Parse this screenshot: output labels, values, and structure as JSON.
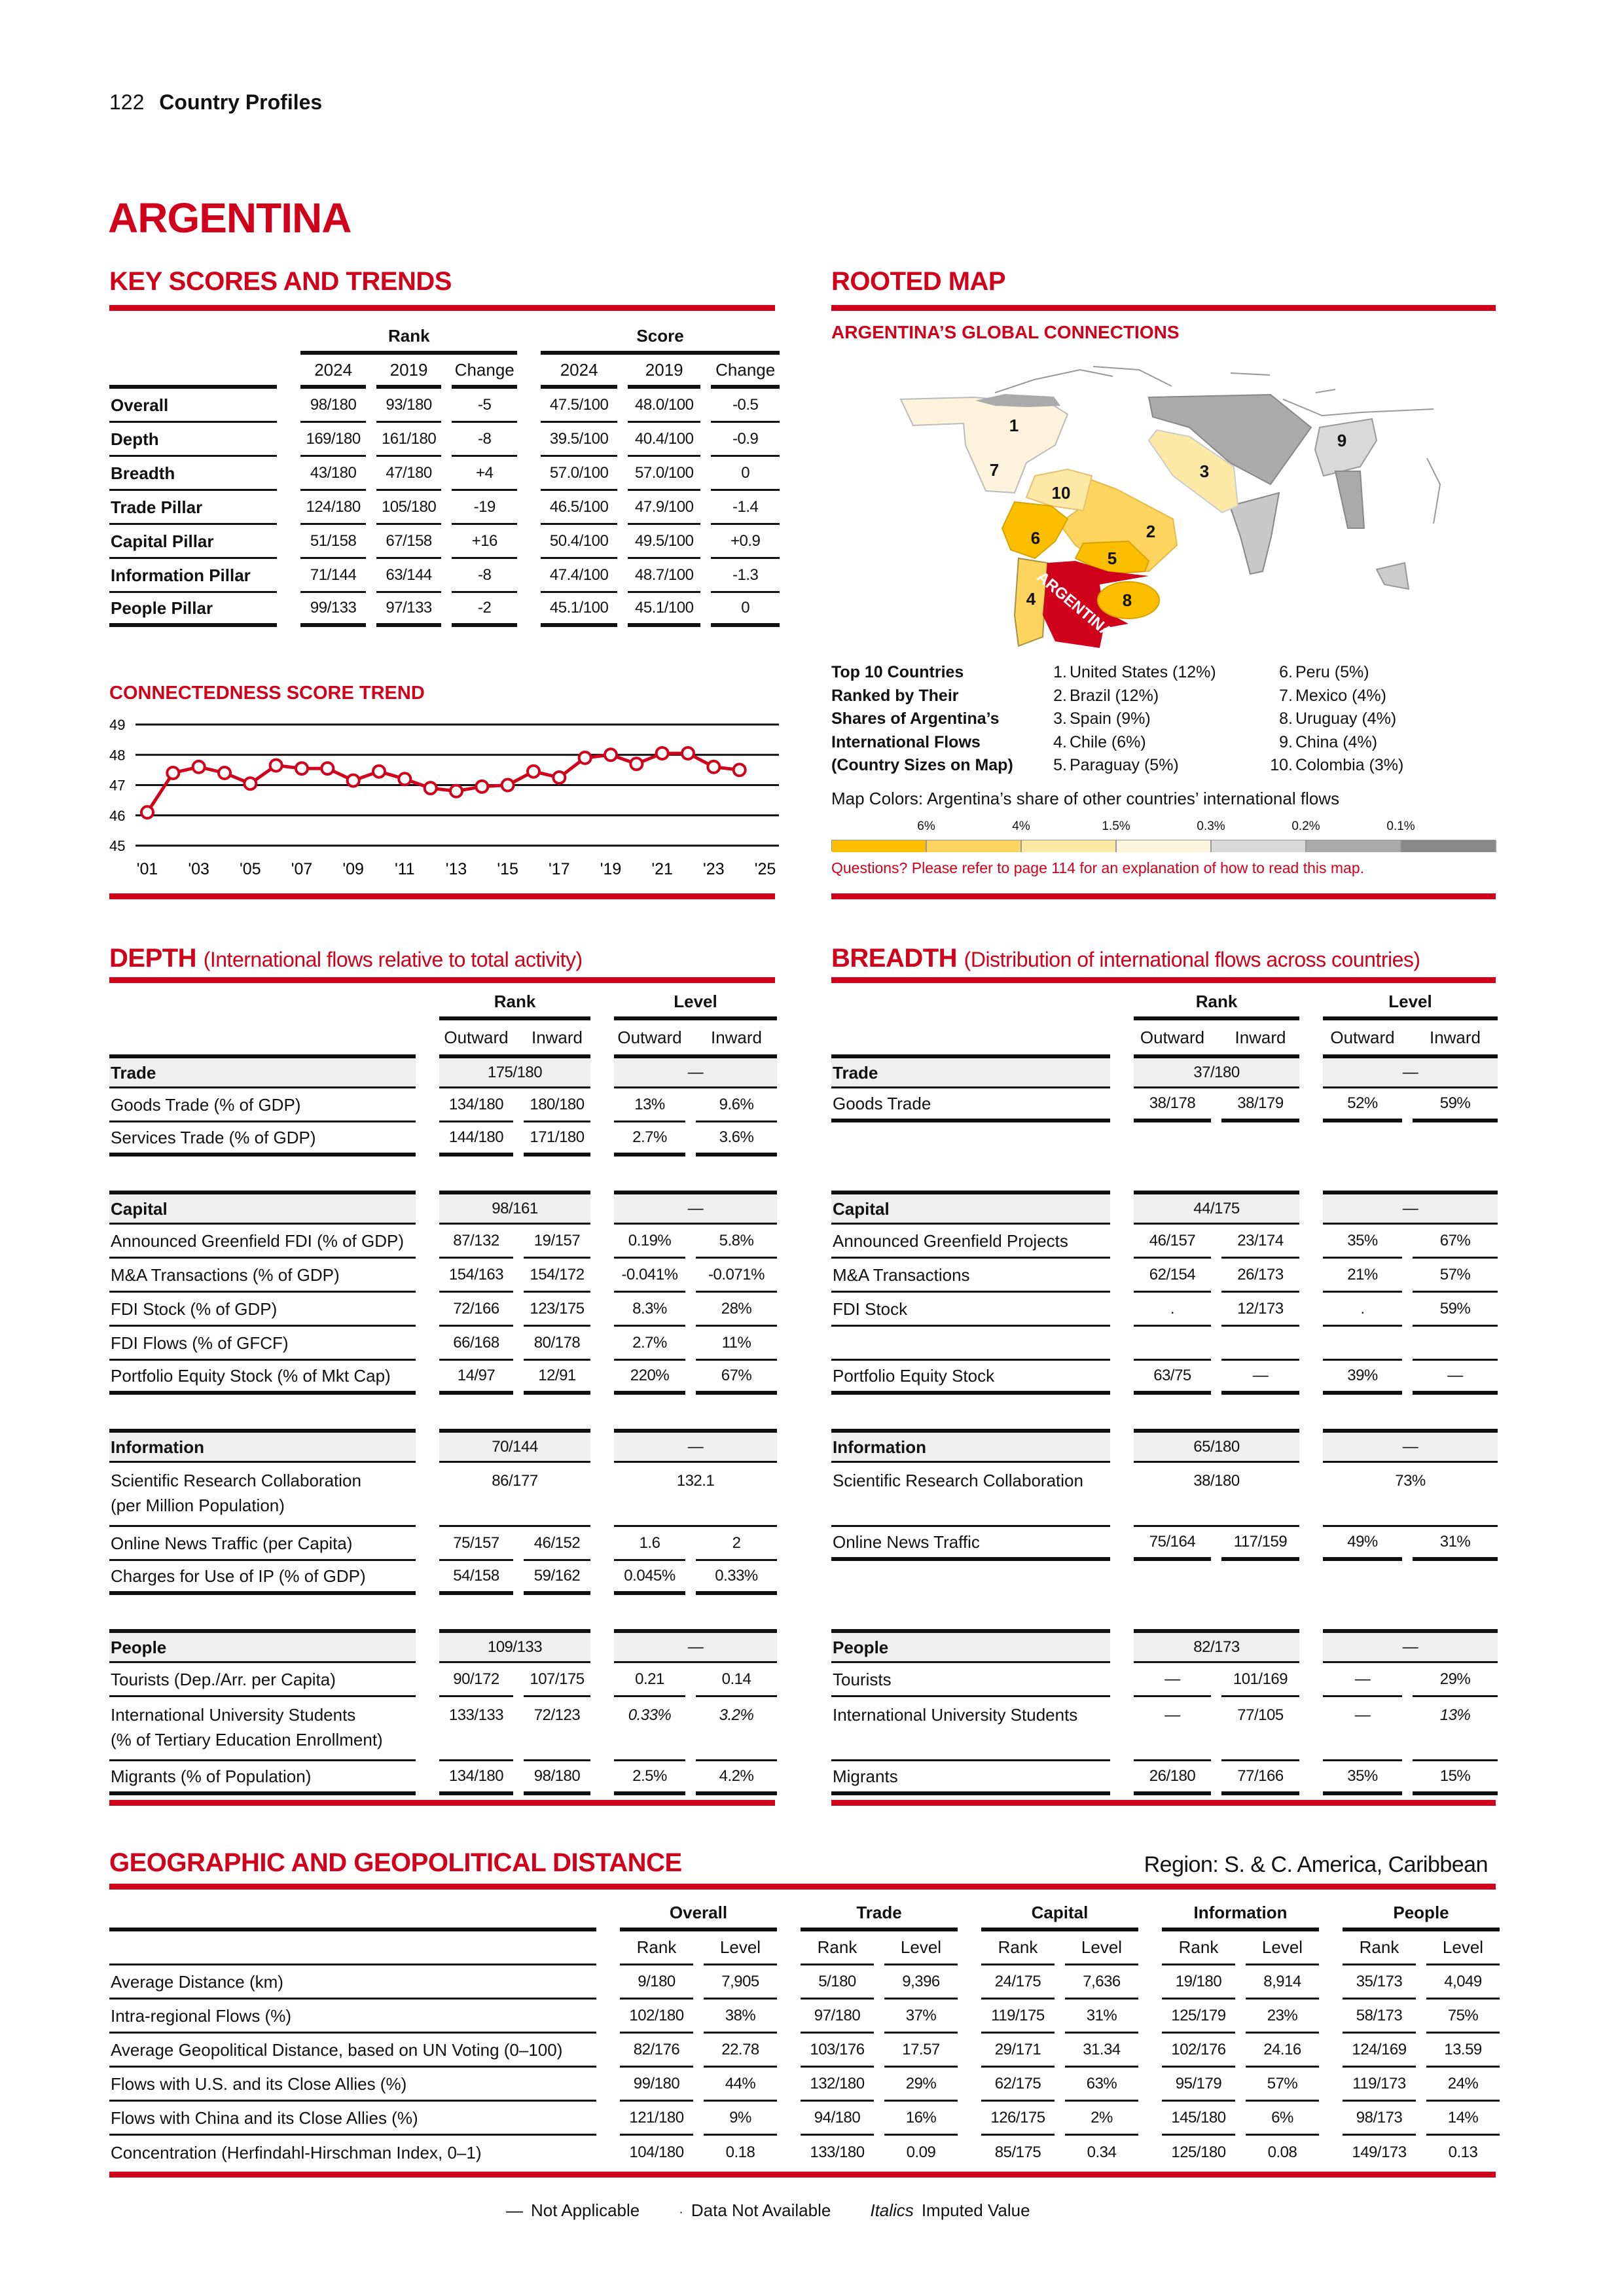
{
  "header": {
    "page_number": "122",
    "section": "Country Profiles"
  },
  "country": "ARGENTINA",
  "key_scores": {
    "title": "KEY SCORES AND TRENDS",
    "rank_label": "Rank",
    "score_label": "Score",
    "col_labels": [
      "2024",
      "2019",
      "Change",
      "2024",
      "2019",
      "Change"
    ],
    "rows": [
      {
        "label": "Overall",
        "cells": [
          "98/180",
          "93/180",
          "-5",
          "47.5/100",
          "48.0/100",
          "-0.5"
        ]
      },
      {
        "label": "Depth",
        "cells": [
          "169/180",
          "161/180",
          "-8",
          "39.5/100",
          "40.4/100",
          "-0.9"
        ]
      },
      {
        "label": "Breadth",
        "cells": [
          "43/180",
          "47/180",
          "+4",
          "57.0/100",
          "57.0/100",
          "0"
        ]
      },
      {
        "label": "Trade Pillar",
        "cells": [
          "124/180",
          "105/180",
          "-19",
          "46.5/100",
          "47.9/100",
          "-1.4"
        ]
      },
      {
        "label": "Capital Pillar",
        "cells": [
          "51/158",
          "67/158",
          "+16",
          "50.4/100",
          "49.5/100",
          "+0.9"
        ]
      },
      {
        "label": "Information Pillar",
        "cells": [
          "71/144",
          "63/144",
          "-8",
          "47.4/100",
          "48.7/100",
          "-1.3"
        ]
      },
      {
        "label": "People Pillar",
        "cells": [
          "99/133",
          "97/133",
          "-2",
          "45.1/100",
          "45.1/100",
          "0"
        ]
      }
    ]
  },
  "chart_data": {
    "type": "line",
    "title": "CONNECTEDNESS SCORE TREND",
    "x": [
      2001,
      2002,
      2003,
      2004,
      2005,
      2006,
      2007,
      2008,
      2009,
      2010,
      2011,
      2012,
      2013,
      2014,
      2015,
      2016,
      2017,
      2018,
      2019,
      2020,
      2021,
      2022,
      2023,
      2024
    ],
    "values": [
      46.1,
      47.4,
      47.6,
      47.4,
      47.05,
      47.65,
      47.55,
      47.55,
      47.15,
      47.45,
      47.2,
      46.9,
      46.8,
      46.95,
      47.0,
      47.45,
      47.25,
      47.9,
      48.0,
      47.7,
      48.05,
      48.05,
      47.6,
      47.5
    ],
    "xlim": [
      2001,
      2025
    ],
    "ylim": [
      45,
      49
    ],
    "x_ticks": [
      2001,
      2003,
      2005,
      2007,
      2009,
      2011,
      2013,
      2015,
      2017,
      2019,
      2021,
      2023,
      2025
    ],
    "x_tick_labels": [
      "'01",
      "'03",
      "'05",
      "'07",
      "'09",
      "'11",
      "'13",
      "'15",
      "'17",
      "'19",
      "'21",
      "'23",
      "'25"
    ],
    "y_ticks": [
      45,
      46,
      47,
      48,
      49
    ],
    "y_tick_labels": [
      "45",
      "46",
      "47",
      "48",
      "49"
    ],
    "grid": true,
    "line_color": "#d0021b"
  },
  "rooted_map": {
    "title": "ROOTED MAP",
    "subtitle": "ARGENTINA’S GLOBAL CONNECTIONS",
    "country_label": "ARGENTINA",
    "map_labels": [
      "1",
      "2",
      "3",
      "4",
      "5",
      "6",
      "7",
      "8",
      "9",
      "10"
    ],
    "top10_label": "Top 10 Countries\nRanked by Their\nShares of Argentina’s\nInternational Flows\n(Country Sizes on Map)",
    "top10": [
      {
        "rank": "1.",
        "name": "United States (12%)"
      },
      {
        "rank": "2.",
        "name": "Brazil (12%)"
      },
      {
        "rank": "3.",
        "name": "Spain (9%)"
      },
      {
        "rank": "4.",
        "name": "Chile (6%)"
      },
      {
        "rank": "5.",
        "name": "Paraguay (5%)"
      },
      {
        "rank": "6.",
        "name": "Peru (5%)"
      },
      {
        "rank": "7.",
        "name": "Mexico (4%)"
      },
      {
        "rank": "8.",
        "name": "Uruguay (4%)"
      },
      {
        "rank": "9.",
        "name": "China (4%)"
      },
      {
        "rank": "10.",
        "name": "Colombia (3%)"
      }
    ],
    "colors_caption": "Map Colors: Argentina’s share of other countries’ international flows",
    "scale_labels": [
      "6%",
      "4%",
      "1.5%",
      "0.3%",
      "0.2%",
      "0.1%"
    ],
    "scale_colors": [
      "#fbbf00",
      "#fdd55e",
      "#fde9a6",
      "#fdf5dc",
      "#d9d9d9",
      "#aaaaaa",
      "#888888"
    ],
    "argentina_color": "#d0021b",
    "questions": "Questions? Please refer to page 114 for an explanation of how to read this map."
  },
  "depth": {
    "title": "DEPTH",
    "subtitle": "(International flows relative to total activity)",
    "rank_label": "Rank",
    "level_label": "Level",
    "sub_labels": [
      "Outward",
      "Inward",
      "Outward",
      "Inward"
    ],
    "groups": [
      {
        "label": "Trade",
        "rank": "175/180",
        "level": "—",
        "rows": [
          {
            "label": "Goods Trade (% of GDP)",
            "cells": [
              "134/180",
              "180/180",
              "13%",
              "9.6%"
            ]
          },
          {
            "label": "Services Trade (% of GDP)",
            "cells": [
              "144/180",
              "171/180",
              "2.7%",
              "3.6%"
            ]
          }
        ]
      },
      {
        "label": "Capital",
        "rank": "98/161",
        "level": "—",
        "rows": [
          {
            "label": "Announced Greenfield FDI (% of GDP)",
            "cells": [
              "87/132",
              "19/157",
              "0.19%",
              "5.8%"
            ]
          },
          {
            "label": "M&A Transactions (% of GDP)",
            "cells": [
              "154/163",
              "154/172",
              "-0.041%",
              "-0.071%"
            ]
          },
          {
            "label": "FDI Stock (% of GDP)",
            "cells": [
              "72/166",
              "123/175",
              "8.3%",
              "28%"
            ]
          },
          {
            "label": "FDI Flows (% of GFCF)",
            "cells": [
              "66/168",
              "80/178",
              "2.7%",
              "11%"
            ]
          },
          {
            "label": "Portfolio Equity Stock (% of Mkt Cap)",
            "cells": [
              "14/97",
              "12/91",
              "220%",
              "67%"
            ]
          }
        ]
      },
      {
        "label": "Information",
        "rank": "70/144",
        "level": "—",
        "rows": [
          {
            "label": "Scientific Research Collaboration\n(per Million Population)",
            "merged": true,
            "cells": [
              "86/177",
              "132.1"
            ]
          },
          {
            "label": "Online News Traffic (per Capita)",
            "cells": [
              "75/157",
              "46/152",
              "1.6",
              "2"
            ]
          },
          {
            "label": "Charges for Use of IP (% of GDP)",
            "cells": [
              "54/158",
              "59/162",
              "0.045%",
              "0.33%"
            ]
          }
        ]
      },
      {
        "label": "People",
        "rank": "109/133",
        "level": "—",
        "rows": [
          {
            "label": "Tourists (Dep./Arr. per Capita)",
            "cells": [
              "90/172",
              "107/175",
              "0.21",
              "0.14"
            ]
          },
          {
            "label": "International University Students\n(% of Tertiary Education Enrollment)",
            "cells": [
              "133/133",
              "72/123",
              {
                "v": "0.33%",
                "italic": true
              },
              {
                "v": "3.2%",
                "italic": true
              }
            ]
          },
          {
            "label": "Migrants (% of Population)",
            "cells": [
              "134/180",
              "98/180",
              "2.5%",
              "4.2%"
            ]
          }
        ]
      }
    ]
  },
  "breadth": {
    "title": "BREADTH",
    "subtitle": "(Distribution of international flows across countries)",
    "rank_label": "Rank",
    "level_label": "Level",
    "sub_labels": [
      "Outward",
      "Inward",
      "Outward",
      "Inward"
    ],
    "groups": [
      {
        "label": "Trade",
        "rank": "37/180",
        "level": "—",
        "rows": [
          {
            "label": "Goods Trade",
            "cells": [
              "38/178",
              "38/179",
              "52%",
              "59%"
            ]
          },
          {
            "blank": true
          }
        ]
      },
      {
        "label": "Capital",
        "rank": "44/175",
        "level": "—",
        "rows": [
          {
            "label": "Announced Greenfield Projects",
            "cells": [
              "46/157",
              "23/174",
              "35%",
              "67%"
            ]
          },
          {
            "label": "M&A Transactions",
            "cells": [
              "62/154",
              "26/173",
              "21%",
              "57%"
            ]
          },
          {
            "label": "FDI Stock",
            "cells": [
              ".",
              "12/173",
              ".",
              "59%"
            ]
          },
          {
            "blank": true
          },
          {
            "label": "Portfolio Equity Stock",
            "cells": [
              "63/75",
              "—",
              "39%",
              "—"
            ]
          }
        ]
      },
      {
        "label": "Information",
        "rank": "65/180",
        "level": "—",
        "rows": [
          {
            "label": "Scientific Research Collaboration",
            "merged": true,
            "cells": [
              "38/180",
              "73%"
            ]
          },
          {
            "label": "Online News Traffic",
            "cells": [
              "75/164",
              "117/159",
              "49%",
              "31%"
            ]
          },
          {
            "blank": true
          }
        ]
      },
      {
        "label": "People",
        "rank": "82/173",
        "level": "—",
        "rows": [
          {
            "label": "Tourists",
            "cells": [
              "—",
              "101/169",
              "—",
              "29%"
            ]
          },
          {
            "label": "International University Students",
            "cells": [
              "—",
              "77/105",
              "—",
              {
                "v": "13%",
                "italic": true
              }
            ]
          },
          {
            "label": "Migrants",
            "cells": [
              "26/180",
              "77/166",
              "35%",
              "15%"
            ]
          }
        ]
      }
    ]
  },
  "geo": {
    "title": "GEOGRAPHIC AND GEOPOLITICAL DISTANCE",
    "region": "Region: S. & C. America, Caribbean",
    "groups": [
      "Overall",
      "Trade",
      "Capital",
      "Information",
      "People"
    ],
    "sub_labels": [
      "Rank",
      "Level"
    ],
    "rows": [
      {
        "label": "Average Distance (km)",
        "cells": [
          "9/180",
          "7,905",
          "5/180",
          "9,396",
          "24/175",
          "7,636",
          "19/180",
          "8,914",
          "35/173",
          "4,049"
        ]
      },
      {
        "label": "Intra-regional Flows (%)",
        "cells": [
          "102/180",
          "38%",
          "97/180",
          "37%",
          "119/175",
          "31%",
          "125/179",
          "23%",
          "58/173",
          "75%"
        ]
      },
      {
        "label": "Average Geopolitical Distance, based on UN Voting (0–100)",
        "cells": [
          "82/176",
          "22.78",
          "103/176",
          "17.57",
          "29/171",
          "31.34",
          "102/176",
          "24.16",
          "124/169",
          "13.59"
        ]
      },
      {
        "label": "Flows with U.S. and its Close Allies (%)",
        "cells": [
          "99/180",
          "44%",
          "132/180",
          "29%",
          "62/175",
          "63%",
          "95/179",
          "57%",
          "119/173",
          "24%"
        ]
      },
      {
        "label": "Flows with China and its Close Allies (%)",
        "cells": [
          "121/180",
          "9%",
          "94/180",
          "16%",
          "126/175",
          "2%",
          "145/180",
          "6%",
          "98/173",
          "14%"
        ]
      },
      {
        "label": "Concentration (Herfindahl-Hirschman Index, 0–1)",
        "cells": [
          "104/180",
          "0.18",
          "133/180",
          "0.09",
          "85/175",
          "0.34",
          "125/180",
          "0.08",
          "149/173",
          "0.13"
        ]
      }
    ]
  },
  "footer_legend": [
    {
      "symbol": "—",
      "text": "Not Applicable"
    },
    {
      "symbol": "·",
      "text": "Data Not Available"
    },
    {
      "symbol": "Italics",
      "text": "Imputed Value"
    }
  ]
}
